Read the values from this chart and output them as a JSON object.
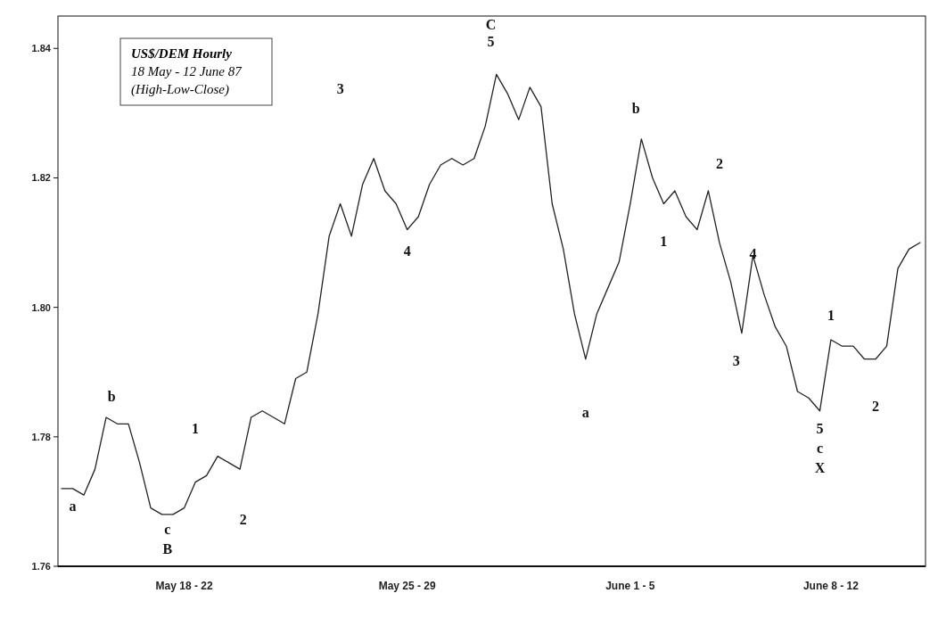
{
  "chart_data": {
    "type": "line",
    "title": "US$/DEM Hourly",
    "subtitle": "18 May - 12 June 87",
    "annotations": [
      "(High-Low-Close)",
      "a",
      "b",
      "c",
      "B",
      "1",
      "2",
      "3",
      "4",
      "C",
      "5",
      "a",
      "b",
      "1",
      "2",
      "4",
      "3",
      "5",
      "c",
      "X",
      "1",
      "2"
    ],
    "categories": [
      null,
      null,
      null,
      null,
      null,
      null,
      null,
      null,
      null,
      null,
      null,
      "May 18 - 22",
      null,
      null,
      null,
      null,
      null,
      null,
      null,
      null,
      null,
      null,
      null,
      null,
      null,
      null,
      null,
      null,
      null,
      null,
      null,
      "May 25 - 29",
      null,
      null,
      null,
      null,
      null,
      null,
      null,
      null,
      null,
      null,
      null,
      null,
      null,
      null,
      null,
      null,
      null,
      null,
      null,
      "June 1 - 5",
      null,
      null,
      null,
      null,
      null,
      null,
      null,
      null,
      null,
      null,
      null,
      null,
      null,
      null,
      null,
      null,
      null,
      "June 8 - 12",
      null,
      null,
      null,
      null,
      null,
      null,
      null,
      null
    ],
    "series": [
      {
        "color": "#222222",
        "values": [
          1.772,
          1.772,
          1.771,
          1.775,
          1.783,
          1.782,
          1.782,
          1.776,
          1.769,
          1.768,
          1.768,
          1.769,
          1.773,
          1.774,
          1.777,
          1.776,
          1.775,
          1.783,
          1.784,
          1.783,
          1.782,
          1.789,
          1.79,
          1.799,
          1.811,
          1.816,
          1.811,
          1.819,
          1.823,
          1.818,
          1.816,
          1.812,
          1.814,
          1.819,
          1.822,
          1.823,
          1.822,
          1.823,
          1.828,
          1.836,
          1.833,
          1.829,
          1.834,
          1.831,
          1.816,
          1.809,
          1.799,
          1.792,
          1.799,
          1.803,
          1.807,
          1.816,
          1.826,
          1.82,
          1.816,
          1.818,
          1.814,
          1.812,
          1.818,
          1.81,
          1.804,
          1.796,
          1.808,
          1.802,
          1.797,
          1.794,
          1.787,
          1.786,
          1.784,
          1.795,
          1.794,
          1.794,
          1.792,
          1.792,
          1.794,
          1.806,
          1.809,
          1.81
        ]
      }
    ],
    "ylim": [
      1.76,
      1.845
    ],
    "yticks": [
      {
        "value": 1.76,
        "label": "1.76"
      },
      {
        "value": 1.78,
        "label": "1.78"
      },
      {
        "value": 1.8,
        "label": "1.80"
      },
      {
        "value": 1.82,
        "label": "1.82"
      },
      {
        "value": 1.84,
        "label": "1.84"
      }
    ],
    "grid": false
  }
}
